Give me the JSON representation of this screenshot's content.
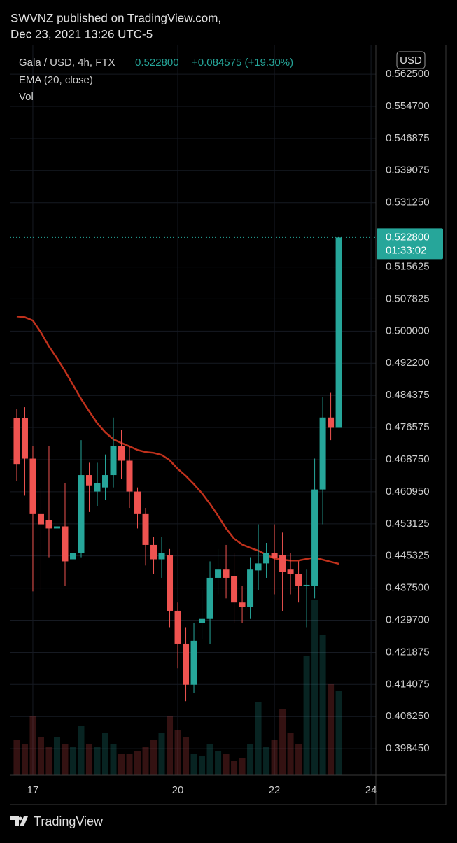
{
  "header": {
    "line1": "SWVNZ published on TradingView.com,",
    "line2": "Dec 23, 2021 13:26 UTC-5"
  },
  "footer": "TradingView",
  "chart_data": {
    "type": "candlestick",
    "symbol": "Gala / USD, 4h, FTX",
    "change": "+0.084575 (+19.30%)",
    "indicator": "EMA (20, close)",
    "volume_label": "Vol",
    "currency": "USD",
    "last_price": {
      "value": 0.5228,
      "label": "0.522800"
    },
    "countdown": "01:33:02",
    "up_color": "#26a69a",
    "down_color": "#ef5350",
    "ema_color": "#c0311c",
    "open": [
      0.4788,
      0.4788,
      0.469,
      0.4555,
      0.454,
      0.452,
      0.4525,
      0.4445,
      0.446,
      0.465,
      0.461,
      0.462,
      0.465,
      0.472,
      0.4685,
      0.461,
      0.4555,
      0.448,
      0.4445,
      0.4455,
      0.432,
      0.424,
      0.414,
      0.429,
      0.43,
      0.44,
      0.442,
      0.4405,
      0.434,
      0.433,
      0.4418,
      0.4435,
      0.446,
      0.4455,
      0.442,
      0.441,
      0.438,
      0.438,
      0.4615,
      0.479,
      0.4765
    ],
    "high": [
      0.481,
      0.4815,
      0.472,
      0.462,
      0.472,
      0.461,
      0.463,
      0.46,
      0.4735,
      0.468,
      0.468,
      0.47,
      0.479,
      0.476,
      0.472,
      0.462,
      0.457,
      0.45,
      0.45,
      0.447,
      0.434,
      0.428,
      0.429,
      0.437,
      0.444,
      0.447,
      0.448,
      0.446,
      0.438,
      0.445,
      0.453,
      0.4485,
      0.453,
      0.451,
      0.446,
      0.444,
      0.442,
      0.469,
      0.484,
      0.485,
      0.5228
    ],
    "low": [
      0.4635,
      0.46,
      0.4367,
      0.437,
      0.445,
      0.443,
      0.438,
      0.442,
      0.445,
      0.456,
      0.4575,
      0.459,
      0.462,
      0.464,
      0.457,
      0.452,
      0.443,
      0.441,
      0.44,
      0.428,
      0.418,
      0.41,
      0.412,
      0.425,
      0.424,
      0.436,
      0.435,
      0.429,
      0.429,
      0.43,
      0.437,
      0.44,
      0.436,
      0.432,
      0.436,
      0.434,
      0.428,
      0.435,
      0.453,
      0.4735,
      0.4765
    ],
    "close": [
      0.4677,
      0.469,
      0.4555,
      0.453,
      0.452,
      0.4525,
      0.444,
      0.446,
      0.465,
      0.4625,
      0.463,
      0.465,
      0.472,
      0.4685,
      0.461,
      0.4555,
      0.448,
      0.4445,
      0.446,
      0.432,
      0.424,
      0.414,
      0.4247,
      0.43,
      0.44,
      0.442,
      0.44,
      0.434,
      0.433,
      0.442,
      0.4435,
      0.446,
      0.4448,
      0.4415,
      0.441,
      0.438,
      0.4383,
      0.4615,
      0.479,
      0.4765,
      0.5228
    ],
    "ema": [
      0.5036,
      0.5034,
      0.5026,
      0.4997,
      0.4963,
      0.4934,
      0.4903,
      0.4869,
      0.4835,
      0.4805,
      0.4776,
      0.4754,
      0.4737,
      0.4728,
      0.472,
      0.4711,
      0.4706,
      0.4704,
      0.4699,
      0.4686,
      0.4665,
      0.4648,
      0.4628,
      0.4606,
      0.458,
      0.4551,
      0.452,
      0.4495,
      0.4481,
      0.4473,
      0.4466,
      0.4456,
      0.4447,
      0.4444,
      0.4442,
      0.4442,
      0.4446,
      0.4449,
      0.4444,
      0.4439,
      0.4434
    ],
    "volume": [
      50,
      45,
      85,
      55,
      40,
      55,
      45,
      40,
      70,
      45,
      40,
      60,
      45,
      30,
      30,
      35,
      40,
      50,
      60,
      85,
      65,
      55,
      30,
      28,
      45,
      35,
      30,
      20,
      25,
      45,
      105,
      40,
      50,
      95,
      60,
      45,
      170,
      250,
      200,
      130,
      120
    ],
    "xlim": [
      -0.78,
      44.6
    ],
    "xticks": [
      {
        "value": 2,
        "label": "17"
      },
      {
        "value": 20,
        "label": "20"
      },
      {
        "value": 32,
        "label": "22"
      },
      {
        "value": 44,
        "label": "24"
      }
    ],
    "ylim": [
      0.392,
      0.5695
    ],
    "yticks": [
      {
        "value": 0.5625,
        "label": "0.562500"
      },
      {
        "value": 0.5547,
        "label": "0.554700"
      },
      {
        "value": 0.546875,
        "label": "0.546875"
      },
      {
        "value": 0.539075,
        "label": "0.539075"
      },
      {
        "value": 0.53125,
        "label": "0.531250"
      },
      {
        "value": 0.515625,
        "label": "0.515625"
      },
      {
        "value": 0.507825,
        "label": "0.507825"
      },
      {
        "value": 0.5,
        "label": "0.500000"
      },
      {
        "value": 0.4922,
        "label": "0.492200"
      },
      {
        "value": 0.484375,
        "label": "0.484375"
      },
      {
        "value": 0.476575,
        "label": "0.476575"
      },
      {
        "value": 0.46875,
        "label": "0.468750"
      },
      {
        "value": 0.46095,
        "label": "0.460950"
      },
      {
        "value": 0.453125,
        "label": "0.453125"
      },
      {
        "value": 0.445325,
        "label": "0.445325"
      },
      {
        "value": 0.4375,
        "label": "0.437500"
      },
      {
        "value": 0.4297,
        "label": "0.429700"
      },
      {
        "value": 0.421875,
        "label": "0.421875"
      },
      {
        "value": 0.414075,
        "label": "0.414075"
      },
      {
        "value": 0.40625,
        "label": "0.406250"
      },
      {
        "value": 0.39845,
        "label": "0.398450"
      }
    ],
    "grid": true
  }
}
